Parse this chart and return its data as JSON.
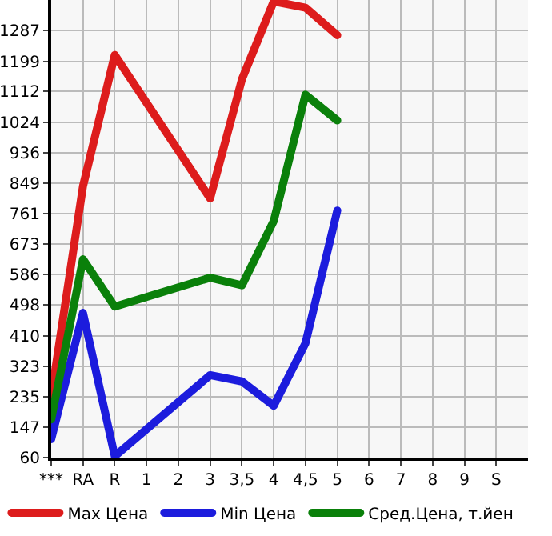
{
  "chart_data": {
    "type": "line",
    "categories": [
      "***",
      "RA",
      "R",
      "1",
      "2",
      "3",
      "3,5",
      "4",
      "4,5",
      "5",
      "6",
      "7",
      "8",
      "9",
      "S"
    ],
    "series": [
      {
        "name": "Max Цена",
        "color": "#dd1c1c",
        "values": [
          235,
          840,
          1217,
          null,
          null,
          805,
          1147,
          1371,
          1353,
          1274,
          null,
          null,
          null,
          null,
          null
        ]
      },
      {
        "name": "Min Цена",
        "color": "#1c1cdd",
        "values": [
          113,
          476,
          64,
          null,
          null,
          297,
          279,
          209,
          389,
          770,
          null,
          null,
          null,
          null,
          null
        ]
      },
      {
        "name": "Сред.Цена, т.йен",
        "color": "#0a800a",
        "values": [
          170,
          630,
          494,
          null,
          null,
          577,
          555,
          740,
          1103,
          1029,
          null,
          null,
          null,
          null,
          null
        ]
      }
    ],
    "ylim": [
      60,
      1375
    ],
    "yticks": [
      60,
      147,
      235,
      323,
      410,
      498,
      586,
      673,
      761,
      849,
      936,
      1024,
      1112,
      1199,
      1287
    ],
    "grid": true,
    "legend": "bottom",
    "marker": "none",
    "line_style": "solid"
  }
}
